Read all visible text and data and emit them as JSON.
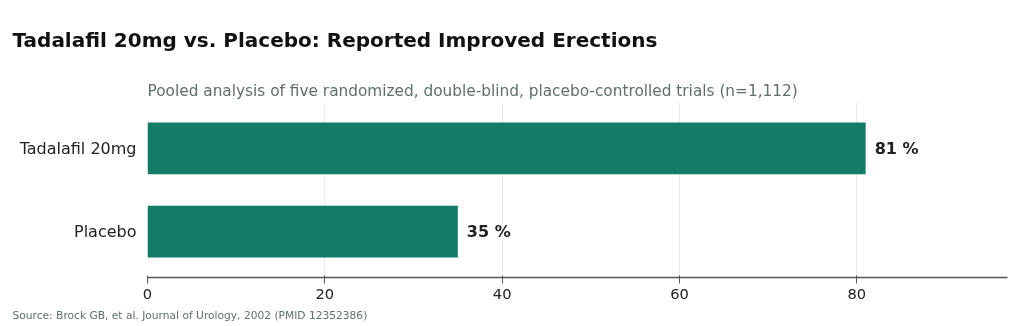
{
  "chart_data": {
    "type": "bar",
    "orientation": "horizontal",
    "title": "Tadalafil 20mg vs. Placebo: Reported Improved Erections",
    "subtitle": "Pooled analysis of five randomized, double-blind, placebo-controlled trials (n=1,112)",
    "categories": [
      "Tadalafil 20mg",
      "Placebo"
    ],
    "series": [
      {
        "color": "#127c69",
        "values": [
          81,
          35
        ],
        "value_labels": [
          "81 %",
          "35 %"
        ]
      }
    ],
    "xlim": [
      0,
      97
    ],
    "xticks": [
      0,
      20,
      40,
      60,
      80
    ],
    "grid": "x",
    "annotations": [
      "Source: Brock GB, et al. Journal of Urology, 2002 (PMID 12352386)"
    ]
  }
}
